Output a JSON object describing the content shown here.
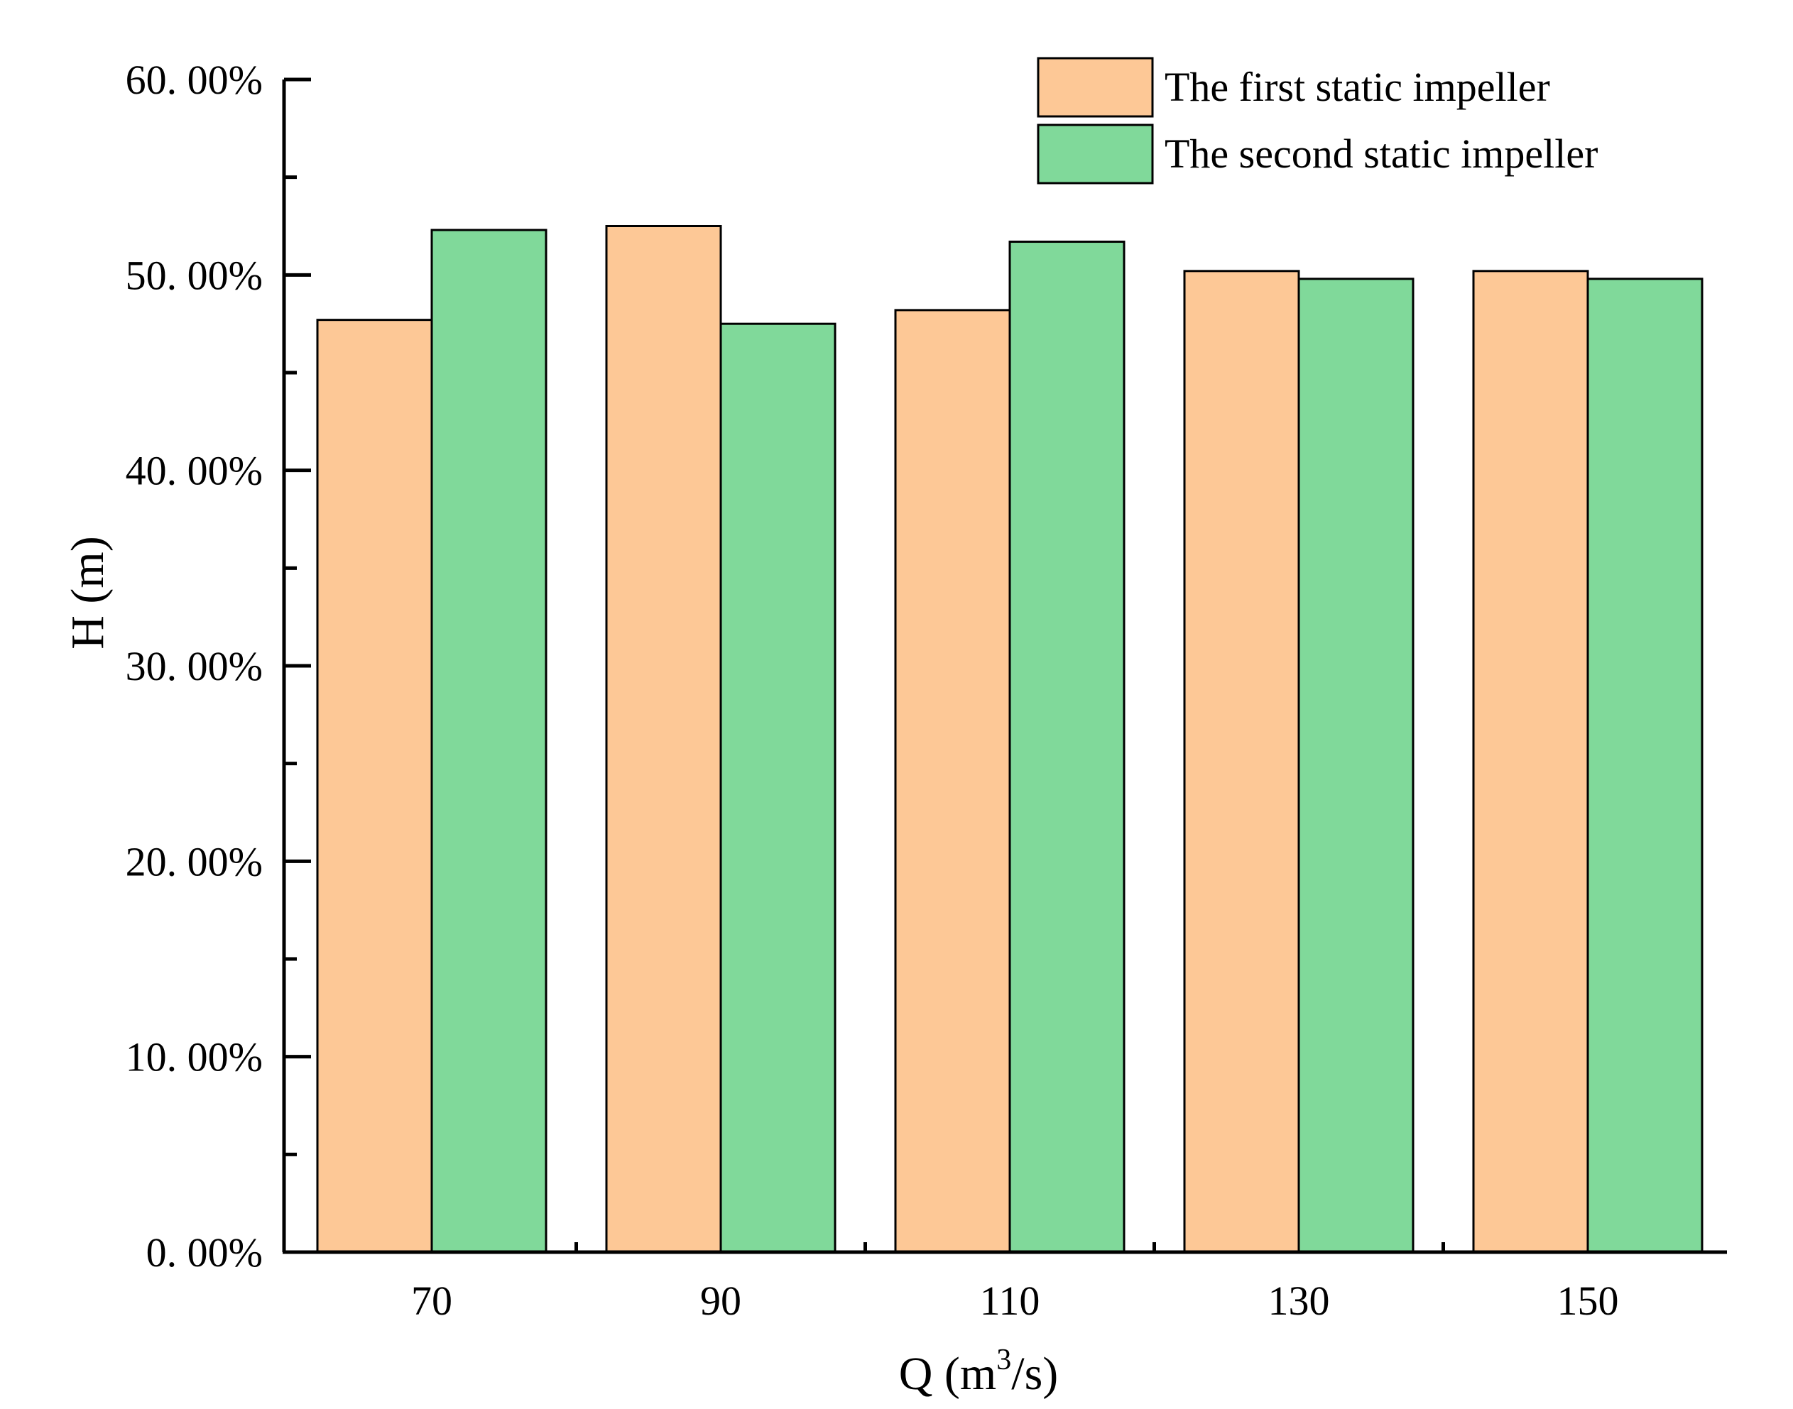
{
  "chart_data": {
    "type": "bar",
    "categories": [
      "70",
      "90",
      "110",
      "130",
      "150"
    ],
    "series": [
      {
        "name": "The first static impeller",
        "color": "#FDC896",
        "values": [
          0.477,
          0.525,
          0.482,
          0.502,
          0.502
        ]
      },
      {
        "name": "The second static impeller",
        "color": "#80D99A",
        "values": [
          0.523,
          0.475,
          0.517,
          0.498,
          0.498
        ]
      }
    ],
    "yticks": [
      0,
      0.1,
      0.2,
      0.3,
      0.4,
      0.5,
      0.6
    ],
    "ytick_labels": [
      "0. 00%",
      "10. 00%",
      "20. 00%",
      "30. 00%",
      "40. 00%",
      "50. 00%",
      "60. 00%"
    ],
    "ylim": [
      0,
      0.6
    ],
    "xlabel": {
      "main": "Q (m",
      "sup": "3",
      "tail": "/s)"
    },
    "ylabel": "H (m)",
    "title": "",
    "grid": false,
    "legend_position": "top-right"
  }
}
